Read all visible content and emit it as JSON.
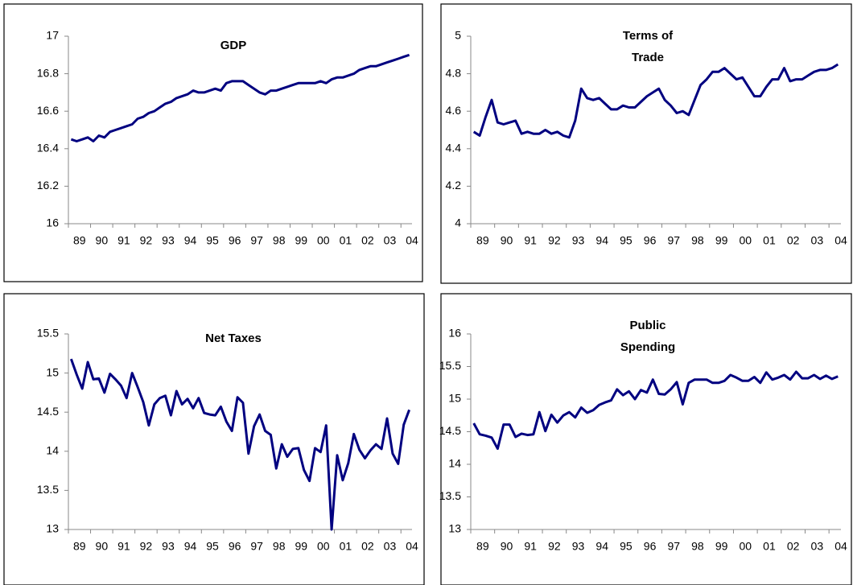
{
  "chart_data": [
    {
      "type": "line",
      "title": [
        "GDP"
      ],
      "categories": [
        "89",
        null,
        null,
        null,
        "90",
        null,
        null,
        null,
        "91",
        null,
        null,
        null,
        "92",
        null,
        null,
        null,
        "93",
        null,
        null,
        null,
        "94",
        null,
        null,
        null,
        "95",
        null,
        null,
        null,
        "96",
        null,
        null,
        null,
        "97",
        null,
        null,
        null,
        "98",
        null,
        null,
        null,
        "99",
        null,
        null,
        null,
        "00",
        null,
        null,
        null,
        "01",
        null,
        null,
        null,
        "02",
        null,
        null,
        null,
        "03",
        null,
        null,
        null,
        "04",
        null
      ],
      "series": [
        {
          "name": "GDP",
          "color": "#000080",
          "values": [
            16.45,
            16.44,
            16.45,
            16.46,
            16.44,
            16.47,
            16.46,
            16.49,
            16.5,
            16.51,
            16.52,
            16.53,
            16.56,
            16.57,
            16.59,
            16.6,
            16.62,
            16.64,
            16.65,
            16.67,
            16.68,
            16.69,
            16.71,
            16.7,
            16.7,
            16.71,
            16.72,
            16.71,
            16.75,
            16.76,
            16.76,
            16.76,
            16.74,
            16.72,
            16.7,
            16.69,
            16.71,
            16.71,
            16.72,
            16.73,
            16.74,
            16.75,
            16.75,
            16.75,
            16.75,
            16.76,
            16.75,
            16.77,
            16.78,
            16.78,
            16.79,
            16.8,
            16.82,
            16.83,
            16.84,
            16.84,
            16.85,
            16.86,
            16.87,
            16.88,
            16.89,
            16.9
          ]
        }
      ],
      "ylim": [
        16,
        17
      ],
      "yticks": [
        16,
        16.2,
        16.4,
        16.6,
        16.8,
        17
      ]
    },
    {
      "type": "line",
      "title": [
        "Terms of",
        "Trade"
      ],
      "categories": [
        "89",
        null,
        null,
        null,
        "90",
        null,
        null,
        null,
        "91",
        null,
        null,
        null,
        "92",
        null,
        null,
        null,
        "93",
        null,
        null,
        null,
        "94",
        null,
        null,
        null,
        "95",
        null,
        null,
        null,
        "96",
        null,
        null,
        null,
        "97",
        null,
        null,
        null,
        "98",
        null,
        null,
        null,
        "99",
        null,
        null,
        null,
        "00",
        null,
        null,
        null,
        "01",
        null,
        null,
        null,
        "02",
        null,
        null,
        null,
        "03",
        null,
        null,
        null,
        "04",
        null
      ],
      "series": [
        {
          "name": "Terms of Trade",
          "color": "#000080",
          "values": [
            4.49,
            4.47,
            4.57,
            4.66,
            4.54,
            4.53,
            4.54,
            4.55,
            4.48,
            4.49,
            4.48,
            4.48,
            4.5,
            4.48,
            4.49,
            4.47,
            4.46,
            4.55,
            4.72,
            4.67,
            4.66,
            4.67,
            4.64,
            4.61,
            4.61,
            4.63,
            4.62,
            4.62,
            4.65,
            4.68,
            4.7,
            4.72,
            4.66,
            4.63,
            4.59,
            4.6,
            4.58,
            4.66,
            4.74,
            4.77,
            4.81,
            4.81,
            4.83,
            4.8,
            4.77,
            4.78,
            4.73,
            4.68,
            4.68,
            4.73,
            4.77,
            4.77,
            4.83,
            4.76,
            4.77,
            4.77,
            4.79,
            4.81,
            4.82,
            4.82,
            4.83,
            4.85
          ]
        }
      ],
      "ylim": [
        4,
        5
      ],
      "yticks": [
        4,
        4.2,
        4.4,
        4.6,
        4.8,
        5
      ]
    },
    {
      "type": "line",
      "title": [
        "Net Taxes"
      ],
      "categories": [
        "89",
        null,
        null,
        null,
        "90",
        null,
        null,
        null,
        "91",
        null,
        null,
        null,
        "92",
        null,
        null,
        null,
        "93",
        null,
        null,
        null,
        "94",
        null,
        null,
        null,
        "95",
        null,
        null,
        null,
        "96",
        null,
        null,
        null,
        "97",
        null,
        null,
        null,
        "98",
        null,
        null,
        null,
        "99",
        null,
        null,
        null,
        "00",
        null,
        null,
        null,
        "01",
        null,
        null,
        null,
        "02",
        null,
        null,
        null,
        "03",
        null,
        null,
        null,
        "04",
        null
      ],
      "series": [
        {
          "name": "Net Taxes",
          "color": "#000080",
          "values": [
            15.18,
            14.98,
            14.8,
            15.14,
            14.92,
            14.93,
            14.75,
            14.99,
            14.92,
            14.84,
            14.68,
            15.0,
            14.82,
            14.63,
            14.33,
            14.6,
            14.68,
            14.71,
            14.46,
            14.77,
            14.6,
            14.67,
            14.55,
            14.68,
            14.49,
            14.47,
            14.46,
            14.57,
            14.38,
            14.26,
            14.69,
            14.62,
            13.97,
            14.32,
            14.47,
            14.26,
            14.21,
            13.78,
            14.09,
            13.93,
            14.03,
            14.04,
            13.76,
            13.62,
            14.04,
            13.99,
            14.33,
            13.0,
            13.95,
            13.63,
            13.85,
            14.22,
            14.02,
            13.91,
            14.01,
            14.09,
            14.03,
            14.42,
            13.97,
            13.84,
            14.34,
            14.53
          ]
        }
      ],
      "ylim": [
        13,
        15.5
      ],
      "yticks": [
        13,
        13.5,
        14,
        14.5,
        15,
        15.5
      ]
    },
    {
      "type": "line",
      "title": [
        "Public",
        "Spending"
      ],
      "categories": [
        "89",
        null,
        null,
        null,
        "90",
        null,
        null,
        null,
        "91",
        null,
        null,
        null,
        "92",
        null,
        null,
        null,
        "93",
        null,
        null,
        null,
        "94",
        null,
        null,
        null,
        "95",
        null,
        null,
        null,
        "96",
        null,
        null,
        null,
        "97",
        null,
        null,
        null,
        "98",
        null,
        null,
        null,
        "99",
        null,
        null,
        null,
        "00",
        null,
        null,
        null,
        "01",
        null,
        null,
        null,
        "02",
        null,
        null,
        null,
        "03",
        null,
        null,
        null,
        "04",
        null
      ],
      "series": [
        {
          "name": "Public Spending",
          "color": "#000080",
          "values": [
            14.63,
            14.46,
            14.44,
            14.41,
            14.24,
            14.61,
            14.61,
            14.42,
            14.47,
            14.45,
            14.46,
            14.8,
            14.51,
            14.76,
            14.64,
            14.75,
            14.8,
            14.72,
            14.87,
            14.79,
            14.83,
            14.91,
            14.95,
            14.98,
            15.15,
            15.06,
            15.12,
            15.0,
            15.14,
            15.1,
            15.3,
            15.08,
            15.07,
            15.15,
            15.26,
            14.92,
            15.25,
            15.3,
            15.3,
            15.3,
            15.25,
            15.25,
            15.28,
            15.37,
            15.33,
            15.28,
            15.28,
            15.34,
            15.25,
            15.41,
            15.3,
            15.33,
            15.37,
            15.3,
            15.42,
            15.32,
            15.32,
            15.37,
            15.31,
            15.36,
            15.31,
            15.35
          ]
        }
      ],
      "ylim": [
        13,
        16
      ],
      "yticks": [
        13,
        13.5,
        14,
        14.5,
        15,
        15.5,
        16
      ]
    }
  ]
}
